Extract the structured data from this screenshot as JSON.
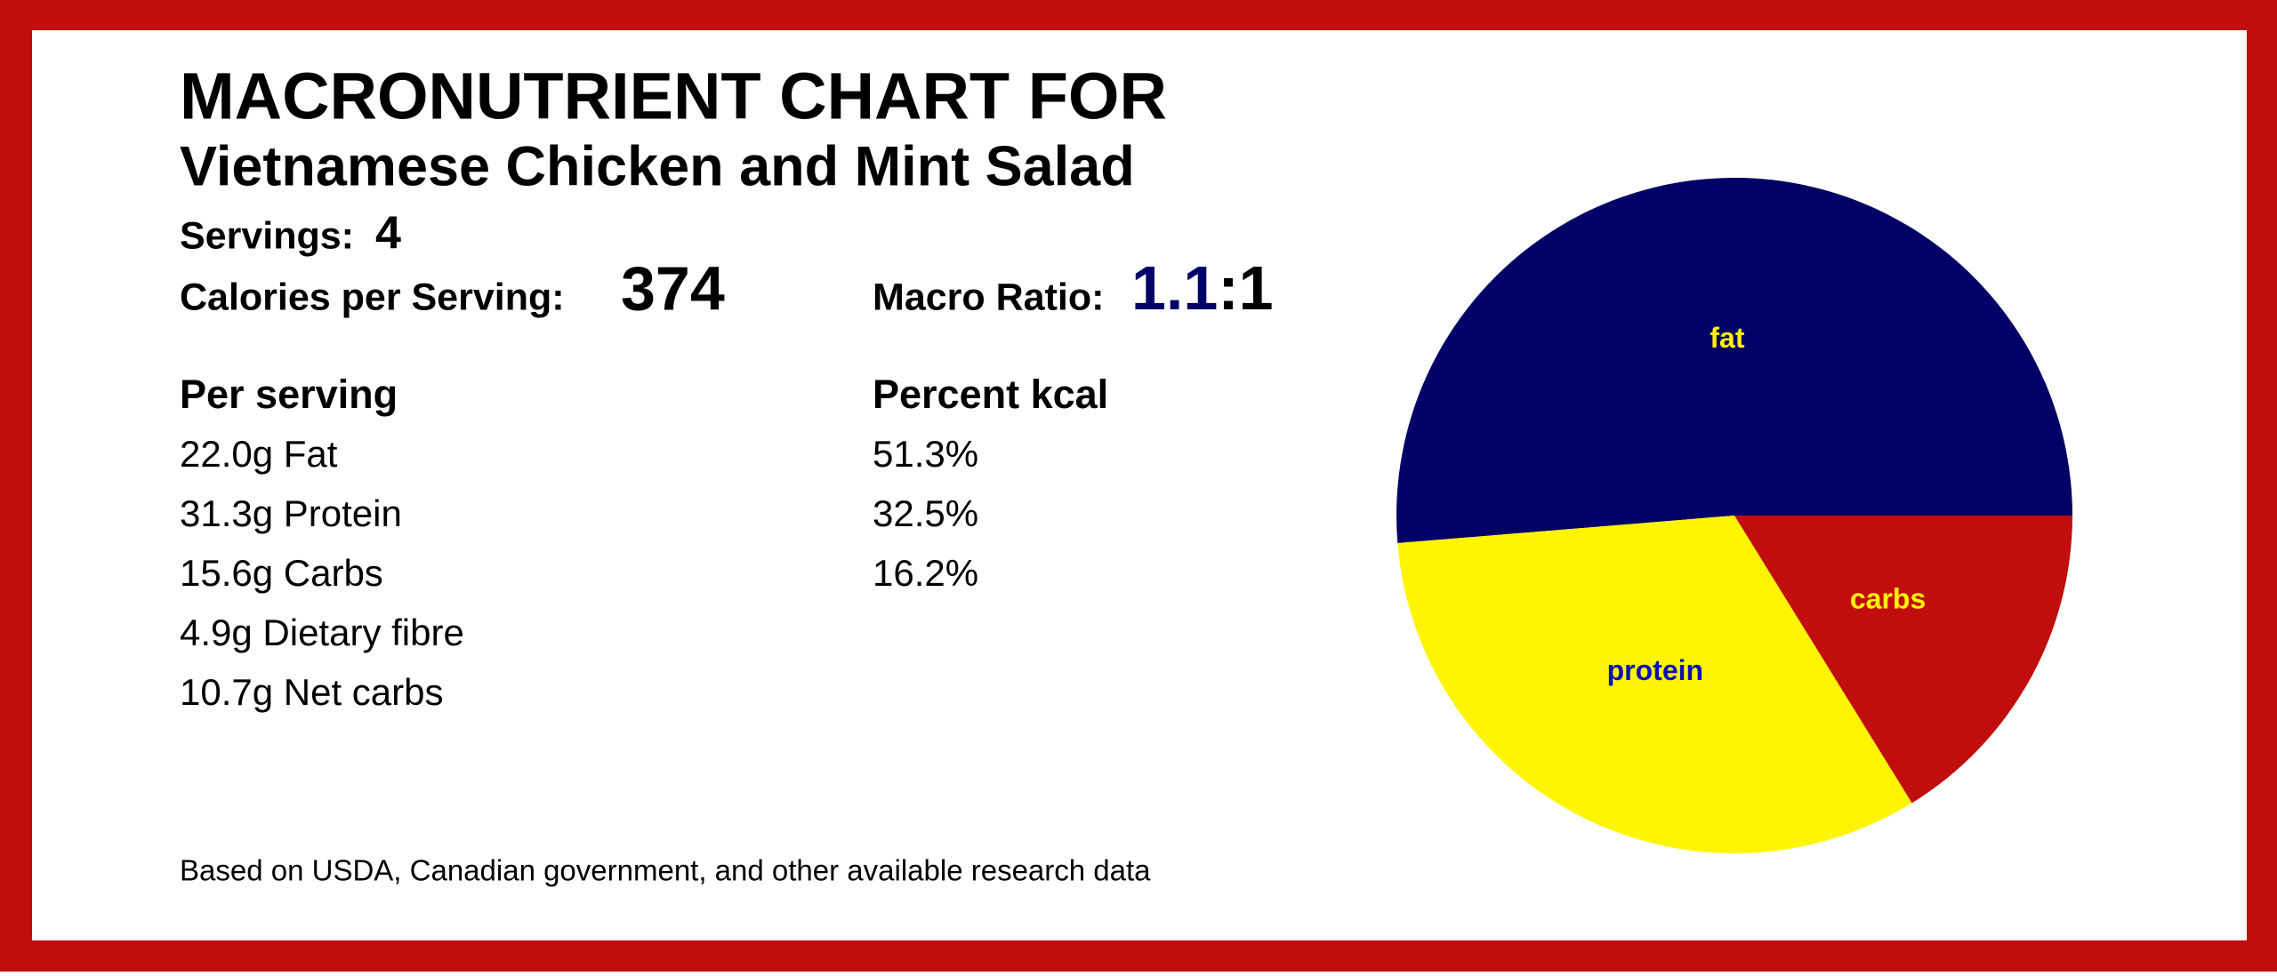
{
  "title": "MACRONUTRIENT CHART FOR",
  "subtitle": "Vietnamese Chicken and Mint Salad",
  "servings": {
    "label": "Servings:",
    "value": 4
  },
  "calories": {
    "label": "Calories per Serving:",
    "value": 374
  },
  "macro_ratio": {
    "label": "Macro Ratio:",
    "value": "1.1",
    "suffix": ":1"
  },
  "per_serving": {
    "header": "Per serving",
    "rows": [
      "22.0g Fat",
      "31.3g Protein",
      "15.6g Carbs",
      "4.9g Dietary fibre",
      "10.7g Net carbs"
    ]
  },
  "percent_kcal": {
    "header": "Percent kcal",
    "rows": [
      "51.3%",
      "32.5%",
      "16.2%"
    ]
  },
  "footer": "Based on USDA, Canadian government, and other available research data",
  "chart_data": {
    "type": "pie",
    "categories": [
      "fat",
      "protein",
      "carbs"
    ],
    "values": [
      51.3,
      32.5,
      16.2
    ],
    "colors": [
      "#000066",
      "#fff500",
      "#c00e0e"
    ],
    "label_colors": [
      "#fff500",
      "#1010b0",
      "#fff500"
    ]
  }
}
